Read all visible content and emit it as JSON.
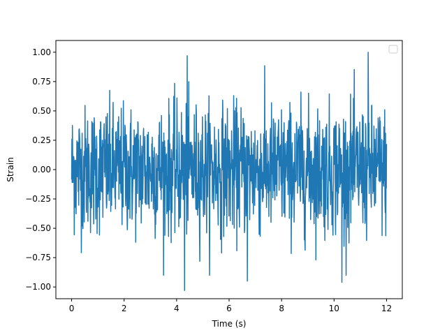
{
  "chart_data": {
    "type": "line",
    "title": "",
    "xlabel": "Time (s)",
    "ylabel": "Strain",
    "xlim": [
      -0.6,
      12.6
    ],
    "ylim": [
      -1.1,
      1.1
    ],
    "x_ticks": [
      0,
      2,
      4,
      6,
      8,
      10,
      12
    ],
    "x_tick_labels": [
      "0",
      "2",
      "4",
      "6",
      "8",
      "10",
      "12"
    ],
    "y_ticks": [
      -1.0,
      -0.75,
      -0.5,
      -0.25,
      0.0,
      0.25,
      0.5,
      0.75,
      1.0
    ],
    "y_tick_labels": [
      "−1.00",
      "−0.75",
      "−0.50",
      "−0.25",
      "0.00",
      "0.25",
      "0.50",
      "0.75",
      "1.00"
    ],
    "grid": false,
    "legend": {
      "placement": "upper right",
      "entries": []
    },
    "series_color": "#1f77b4",
    "series": [
      {
        "x_range": [
          0,
          12
        ],
        "sample_count": 1200,
        "description": "dense noise-like strain signal, amplitude mostly within ±0.6 with peaks near ±1.0",
        "peaks": [
          {
            "x": 4.4,
            "y": 0.97
          },
          {
            "x": 11.3,
            "y": 1.0
          },
          {
            "x": 4.3,
            "y": -1.03
          },
          {
            "x": 10.3,
            "y": -0.96
          },
          {
            "x": 6.7,
            "y": -0.95
          }
        ]
      }
    ]
  }
}
